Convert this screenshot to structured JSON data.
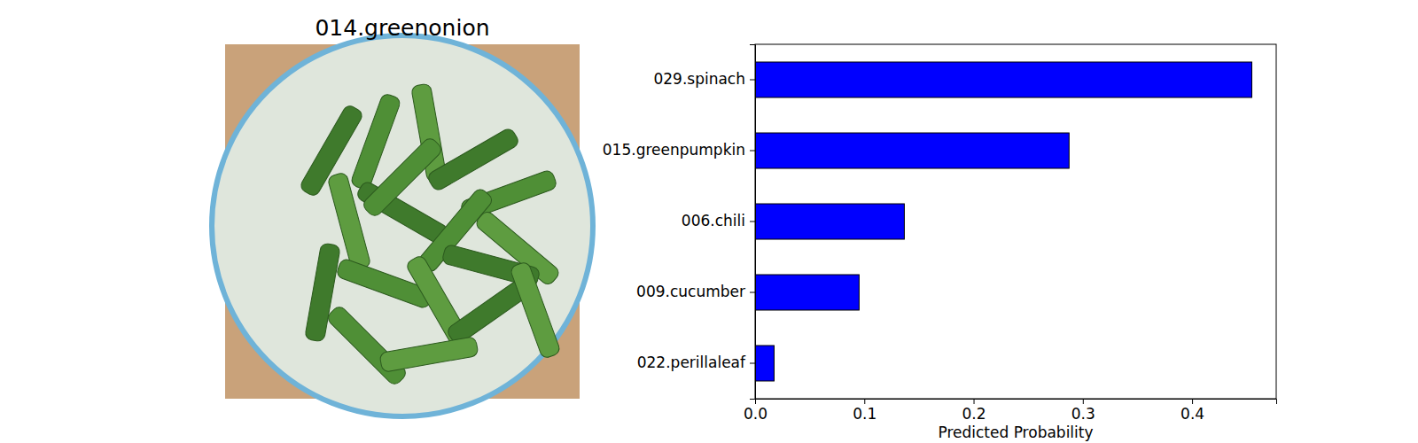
{
  "image": {
    "title": "014.greenonion"
  },
  "chart_data": {
    "type": "bar",
    "orientation": "horizontal",
    "categories": [
      "029.spinach",
      "015.greenpumpkin",
      "006.chili",
      "009.cucumber",
      "022.perillaleaf"
    ],
    "values": [
      0.4547,
      0.2874,
      0.1366,
      0.0952,
      0.0174
    ],
    "color": "#0000ff",
    "x_label": "Predicted Probability",
    "xlim": [
      0,
      0.477
    ],
    "xticks": [
      {
        "value": 0,
        "label": "0.0"
      },
      0.1,
      0.2,
      0.3,
      0.4
    ],
    "grid": false
  }
}
